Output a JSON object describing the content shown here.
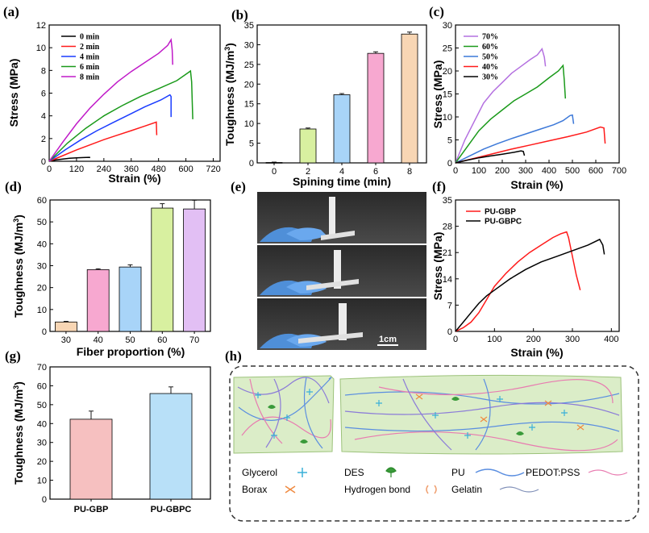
{
  "panels": {
    "a": "(a)",
    "b": "(b)",
    "c": "(c)",
    "d": "(d)",
    "e": "(e)",
    "f": "(f)",
    "g": "(g)",
    "h": "(h)"
  },
  "colors": {
    "black": "#000000",
    "red": "#ff1a1a",
    "blue": "#1a3cff",
    "green": "#1a9a1a",
    "magenta": "#c01ac8",
    "bar_green": "#d8f0a0",
    "bar_blue": "#a8d4f8",
    "bar_pink": "#f7a8d0",
    "bar_peach": "#f8d6b4",
    "bar_lilac": "#e2bff4",
    "bar_salmon": "#f6c0c0"
  },
  "chart_data": [
    {
      "id": "a",
      "type": "line",
      "xlabel": "Strain (%)",
      "ylabel": "Stress (MPa)",
      "xlim": [
        0,
        750
      ],
      "ylim": [
        0,
        12
      ],
      "xticks": [
        "0",
        "120",
        "240",
        "360",
        "480",
        "600",
        "720"
      ],
      "yticks": [
        "0",
        "2",
        "4",
        "6",
        "8",
        "10",
        "12"
      ],
      "series": [
        {
          "name": "0 min",
          "color": "#000000",
          "x": [
            0,
            30,
            60,
            90,
            120,
            150,
            175,
            180
          ],
          "y": [
            0,
            0.12,
            0.2,
            0.26,
            0.3,
            0.33,
            0.35,
            0.33
          ]
        },
        {
          "name": "2 min",
          "color": "#ff1a1a",
          "x": [
            0,
            60,
            120,
            180,
            240,
            300,
            360,
            420,
            470,
            472
          ],
          "y": [
            0,
            0.5,
            1.0,
            1.45,
            1.9,
            2.3,
            2.7,
            3.1,
            3.45,
            2.3
          ]
        },
        {
          "name": "4 min",
          "color": "#1a3cff",
          "x": [
            0,
            70,
            140,
            210,
            280,
            350,
            420,
            490,
            530,
            535,
            535
          ],
          "y": [
            0,
            1.0,
            1.9,
            2.7,
            3.4,
            4.1,
            4.8,
            5.4,
            5.85,
            5.7,
            3.9
          ]
        },
        {
          "name": "6 min",
          "color": "#1a9a1a",
          "x": [
            0,
            80,
            160,
            240,
            320,
            400,
            480,
            560,
            610,
            620,
            625,
            630
          ],
          "y": [
            0,
            1.6,
            2.9,
            4.0,
            4.9,
            5.7,
            6.4,
            7.1,
            7.8,
            7.95,
            7.0,
            3.7
          ]
        },
        {
          "name": "8 min",
          "color": "#c01ac8",
          "x": [
            0,
            60,
            120,
            180,
            240,
            300,
            360,
            420,
            480,
            520,
            535,
            540,
            542
          ],
          "y": [
            0,
            1.7,
            3.3,
            4.7,
            5.9,
            7.0,
            7.9,
            8.7,
            9.5,
            10.2,
            10.7,
            9.8,
            8.5
          ]
        }
      ]
    },
    {
      "id": "b",
      "type": "bar",
      "xlabel": "Spining time (min)",
      "ylabel": "Toughness (MJ/m",
      "ylabel_sup": "3",
      "ylabel_end": ")",
      "categories": [
        "0",
        "2",
        "4",
        "6",
        "8"
      ],
      "values": [
        0.1,
        8.6,
        17.3,
        27.8,
        32.7
      ],
      "errors": [
        0.1,
        0.25,
        0.3,
        0.4,
        0.5
      ],
      "colors": [
        "#f0f0f0",
        "#d8f0a0",
        "#a8d4f8",
        "#f7a8d0",
        "#f8d6b4"
      ],
      "ylim": [
        0,
        35
      ],
      "yticks": [
        "0",
        "5",
        "10",
        "15",
        "20",
        "25",
        "30",
        "35"
      ]
    },
    {
      "id": "c",
      "type": "line",
      "xlabel": "Strain (%)",
      "ylabel": "Stress (MPa)",
      "xlim": [
        0,
        700
      ],
      "ylim": [
        0,
        30
      ],
      "xticks": [
        "0",
        "100",
        "200",
        "300",
        "400",
        "500",
        "600",
        "700"
      ],
      "yticks": [
        "0",
        "5",
        "10",
        "15",
        "20",
        "25",
        "30"
      ],
      "series": [
        {
          "name": "70%",
          "color": "#b470e0",
          "x": [
            0,
            40,
            80,
            120,
            160,
            200,
            240,
            280,
            320,
            350,
            370,
            380,
            385
          ],
          "y": [
            0,
            5,
            9,
            13,
            15.5,
            17.5,
            19.5,
            21,
            22.5,
            23.5,
            24.8,
            23,
            21
          ]
        },
        {
          "name": "60%",
          "color": "#1a9a1a",
          "x": [
            0,
            50,
            100,
            150,
            200,
            250,
            300,
            350,
            400,
            440,
            460,
            465,
            470
          ],
          "y": [
            0,
            3.5,
            7,
            9.5,
            11.5,
            13.5,
            15,
            16.5,
            18.5,
            20,
            21.2,
            18,
            14
          ]
        },
        {
          "name": "50%",
          "color": "#3c78d8",
          "x": [
            0,
            60,
            120,
            180,
            240,
            300,
            360,
            420,
            460,
            490,
            500,
            505
          ],
          "y": [
            0,
            1.5,
            3,
            4.2,
            5.3,
            6.3,
            7.3,
            8.3,
            9.2,
            10.3,
            10.4,
            8.5
          ]
        },
        {
          "name": "40%",
          "color": "#ff1a1a",
          "x": [
            0,
            80,
            160,
            240,
            320,
            400,
            480,
            560,
            620,
            635,
            640
          ],
          "y": [
            0,
            1.0,
            2.0,
            3.0,
            3.9,
            4.8,
            5.7,
            6.7,
            7.8,
            7.6,
            4.2
          ]
        },
        {
          "name": "30%",
          "color": "#000000",
          "x": [
            0,
            50,
            100,
            150,
            200,
            250,
            280,
            290,
            295
          ],
          "y": [
            0,
            0.6,
            1.1,
            1.5,
            1.9,
            2.3,
            2.6,
            2.5,
            1.6
          ]
        }
      ]
    },
    {
      "id": "d",
      "type": "bar",
      "xlabel": "Fiber proportion (%)",
      "ylabel": "Toughness (MJ/m",
      "ylabel_sup": "3",
      "ylabel_end": ")",
      "categories": [
        "30",
        "40",
        "50",
        "60",
        "70"
      ],
      "values": [
        4.3,
        28.2,
        29.4,
        56.3,
        55.9
      ],
      "errors": [
        0.3,
        0.4,
        1.0,
        2.0,
        4.0
      ],
      "colors": [
        "#f8d6b4",
        "#f7a8d0",
        "#a8d4f8",
        "#d8f0a0",
        "#e2bff4"
      ],
      "ylim": [
        0,
        60
      ],
      "yticks": [
        "0",
        "10",
        "20",
        "30",
        "40",
        "50",
        "60"
      ]
    },
    {
      "id": "f",
      "type": "line",
      "xlabel": "Strain (%)",
      "ylabel": "Stress (MPa)",
      "xlim": [
        0,
        420
      ],
      "ylim": [
        0,
        35
      ],
      "xticks": [
        "0",
        "100",
        "200",
        "300",
        "400"
      ],
      "yticks": [
        "0",
        "7",
        "14",
        "21",
        "28",
        "35"
      ],
      "series": [
        {
          "name": "PU-GBP",
          "color": "#ff1a1a",
          "x": [
            0,
            20,
            40,
            60,
            80,
            100,
            130,
            160,
            190,
            220,
            250,
            270,
            285,
            290,
            300,
            310,
            320
          ],
          "y": [
            0,
            1,
            2.5,
            5,
            8.5,
            12,
            15.5,
            18.5,
            21,
            23,
            25,
            26,
            26.5,
            25,
            20,
            15,
            11
          ]
        },
        {
          "name": "PU-GBPC",
          "color": "#000000",
          "x": [
            0,
            20,
            40,
            60,
            80,
            100,
            140,
            180,
            220,
            260,
            300,
            340,
            370,
            378,
            382
          ],
          "y": [
            0,
            2.5,
            5,
            7.5,
            9.5,
            11,
            14,
            16.5,
            18.5,
            20,
            21.5,
            23,
            24.5,
            23,
            20.5
          ]
        }
      ]
    },
    {
      "id": "g",
      "type": "bar",
      "xlabel": "",
      "ylabel": "Toughness (MJ/m",
      "ylabel_sup": "3",
      "ylabel_end": ")",
      "categories": [
        "PU-GBP",
        "PU-GBPC"
      ],
      "values": [
        42.3,
        55.9
      ],
      "errors": [
        4.3,
        3.5
      ],
      "colors": [
        "#f6c0c0",
        "#b8e0f8"
      ],
      "ylim": [
        0,
        70
      ],
      "yticks": [
        "0",
        "10",
        "20",
        "30",
        "40",
        "50",
        "60",
        "70"
      ]
    }
  ],
  "photo": {
    "scale_label": "1cm"
  },
  "schematic": {
    "legend": [
      {
        "label": "Glycerol",
        "icon": "glycerol-icon"
      },
      {
        "label": "DES",
        "icon": "des-icon"
      },
      {
        "label": "PU",
        "icon": "pu-icon"
      },
      {
        "label": "PEDOT:PSS",
        "icon": "pedot-icon"
      },
      {
        "label": "Borax",
        "icon": "borax-icon"
      },
      {
        "label": "Hydrogen bond",
        "icon": "hbond-icon"
      },
      {
        "label": "Gelatin",
        "icon": "gelatin-icon"
      }
    ]
  }
}
